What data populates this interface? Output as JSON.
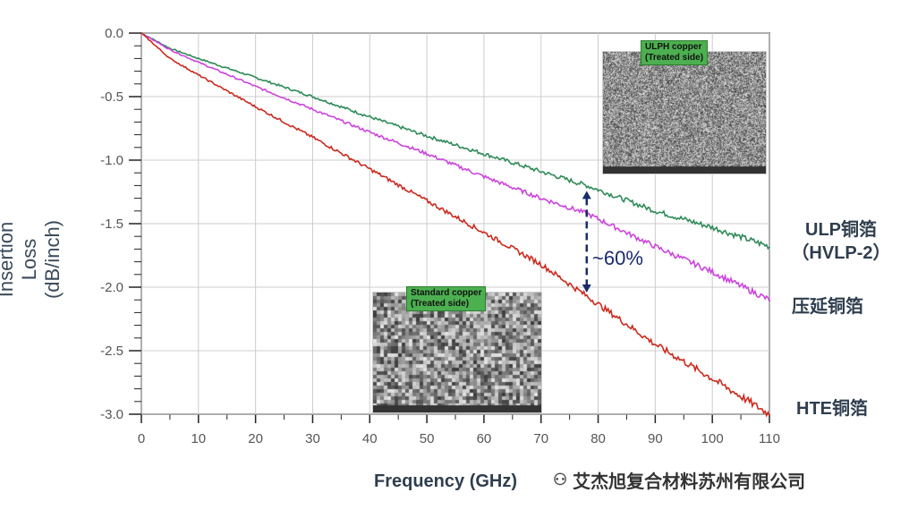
{
  "chart_data": {
    "type": "line",
    "title": "",
    "xlabel": "Frequency (GHz)",
    "ylabel": "Insertion Loss (dB/inch)",
    "ylabel_lines": [
      "Insertion Loss",
      "(dB/inch)"
    ],
    "xlim": [
      0,
      110
    ],
    "ylim": [
      -3.0,
      0.0
    ],
    "xticks": [
      "0",
      "10",
      "20",
      "30",
      "40",
      "50",
      "60",
      "70",
      "80",
      "90",
      "100",
      "110"
    ],
    "yticks": [
      "0.0",
      "-0.5",
      "-1.0",
      "-1.5",
      "-2.0",
      "-2.5",
      "-3.0"
    ],
    "grid": true,
    "x": [
      0,
      5,
      10,
      20,
      30,
      40,
      50,
      60,
      70,
      78,
      90,
      100,
      110
    ],
    "series": [
      {
        "name": "ULP铜箔（HVLP-2）",
        "label_lines": [
          "ULP铜箔",
          "（HVLP-2）"
        ],
        "color": "#2e8b57",
        "values": [
          0,
          -0.12,
          -0.2,
          -0.35,
          -0.5,
          -0.66,
          -0.81,
          -0.95,
          -1.09,
          -1.2,
          -1.4,
          -1.53,
          -1.68
        ]
      },
      {
        "name": "压延铜箔",
        "color": "#cc44dd",
        "values": [
          0,
          -0.13,
          -0.23,
          -0.42,
          -0.6,
          -0.78,
          -0.95,
          -1.13,
          -1.3,
          -1.42,
          -1.68,
          -1.88,
          -2.1
        ]
      },
      {
        "name": "HTE铜箔",
        "color": "#cc2a1e",
        "values": [
          0,
          -0.2,
          -0.33,
          -0.58,
          -0.82,
          -1.07,
          -1.32,
          -1.57,
          -1.82,
          -2.07,
          -2.45,
          -2.72,
          -3.0
        ]
      }
    ],
    "annotations": {
      "gap_label": "~60%",
      "gap_at_x": 78
    },
    "insets": [
      {
        "label_lines": [
          "ULPH copper",
          "(Treated side)"
        ]
      },
      {
        "label_lines": [
          "Standard copper",
          "(Treated side)"
        ]
      }
    ]
  },
  "watermark": "艾杰旭复合材料苏州有限公司"
}
